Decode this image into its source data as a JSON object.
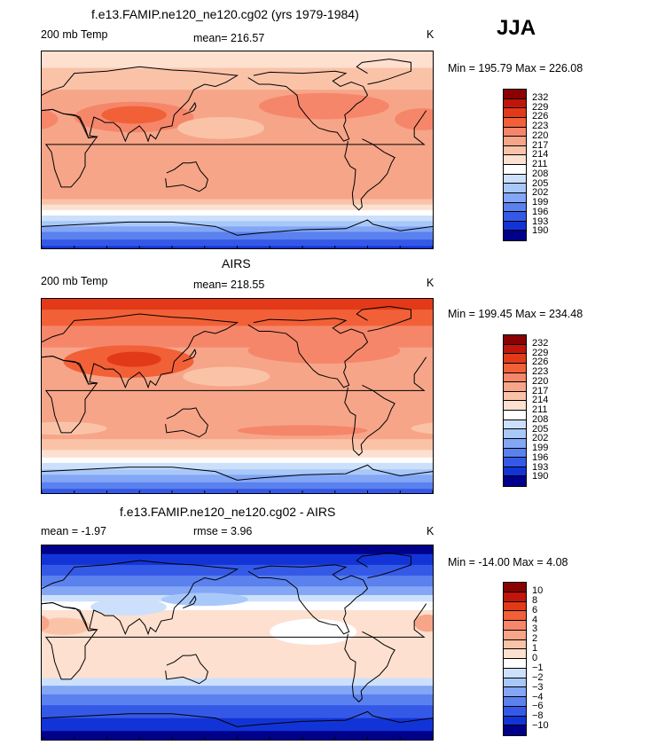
{
  "season": "JJA",
  "chart_data": [
    {
      "type": "heatmap",
      "title": "f.e13.FAMIP.ne120_ne120.cg02 (yrs 1979-1984)",
      "left_label": "200 mb Temp",
      "center_label": "mean=  216.57",
      "units": "K",
      "min_max": "Min = 195.79 Max = 226.08",
      "min": 195.79,
      "max": 226.08,
      "mean": 216.57,
      "levels": [
        "232",
        "229",
        "226",
        "223",
        "220",
        "217",
        "214",
        "211",
        "208",
        "205",
        "202",
        "199",
        "196",
        "193",
        "190"
      ],
      "colors": [
        "#8b0000",
        "#c1150c",
        "#e23a19",
        "#f26038",
        "#f5866a",
        "#f6a589",
        "#fac3a8",
        "#fde0cf",
        "#ffffff",
        "#cce0fb",
        "#a9c8fa",
        "#83a7f5",
        "#5b81ef",
        "#3559e7",
        "#1234d7",
        "#00008b"
      ],
      "bands": [
        {
          "lat": 90,
          "i": 7
        },
        {
          "lat": 75,
          "i": 6
        },
        {
          "lat": 55,
          "i": 5
        },
        {
          "lat": 10,
          "i": 5
        },
        {
          "lat": -30,
          "i": 5
        },
        {
          "lat": -45,
          "i": 6
        },
        {
          "lat": -50,
          "i": 7
        },
        {
          "lat": -55,
          "i": 8
        },
        {
          "lat": -60,
          "i": 9
        },
        {
          "lat": -65,
          "i": 10
        },
        {
          "lat": -70,
          "i": 11
        },
        {
          "lat": -75,
          "i": 12
        },
        {
          "lat": -82,
          "i": 13
        },
        {
          "lat": -88,
          "i": 14
        }
      ],
      "blobs": [
        {
          "lon": 85,
          "lat": 30,
          "rlon": 55,
          "rlat": 14,
          "i": 4
        },
        {
          "lon": 85,
          "lat": 32,
          "rlon": 30,
          "rlat": 8,
          "i": 3
        },
        {
          "lon": 165,
          "lat": 20,
          "rlon": 40,
          "rlat": 10,
          "i": 6
        },
        {
          "lon": 350,
          "lat": 28,
          "rlon": 25,
          "rlat": 10,
          "i": 4
        },
        {
          "lon": 260,
          "lat": 40,
          "rlon": 60,
          "rlat": 12,
          "i": 4
        }
      ]
    },
    {
      "type": "heatmap",
      "title": "AIRS",
      "left_label": "200 mb Temp",
      "center_label": "mean=  218.55",
      "units": "K",
      "min_max": "Min = 199.45 Max = 234.48",
      "min": 199.45,
      "max": 234.48,
      "mean": 218.55,
      "levels": [
        "232",
        "229",
        "226",
        "223",
        "220",
        "217",
        "214",
        "211",
        "208",
        "205",
        "202",
        "199",
        "196",
        "193",
        "190"
      ],
      "colors": [
        "#8b0000",
        "#c1150c",
        "#e23a19",
        "#f26038",
        "#f5866a",
        "#f6a589",
        "#fac3a8",
        "#fde0cf",
        "#ffffff",
        "#cce0fb",
        "#a9c8fa",
        "#83a7f5",
        "#5b81ef",
        "#3559e7",
        "#1234d7",
        "#00008b"
      ],
      "bands": [
        {
          "lat": 90,
          "i": 2
        },
        {
          "lat": 80,
          "i": 3
        },
        {
          "lat": 65,
          "i": 4
        },
        {
          "lat": 45,
          "i": 5
        },
        {
          "lat": 15,
          "i": 5
        },
        {
          "lat": -20,
          "i": 5
        },
        {
          "lat": -40,
          "i": 6
        },
        {
          "lat": -50,
          "i": 7
        },
        {
          "lat": -57,
          "i": 8
        },
        {
          "lat": -62,
          "i": 9
        },
        {
          "lat": -68,
          "i": 10
        },
        {
          "lat": -73,
          "i": 11
        },
        {
          "lat": -80,
          "i": 12
        },
        {
          "lat": -86,
          "i": 13
        }
      ],
      "blobs": [
        {
          "lon": 80,
          "lat": 32,
          "rlon": 60,
          "rlat": 15,
          "i": 3
        },
        {
          "lon": 85,
          "lat": 34,
          "rlon": 25,
          "rlat": 7,
          "i": 2
        },
        {
          "lon": 260,
          "lat": 42,
          "rlon": 70,
          "rlat": 12,
          "i": 4
        },
        {
          "lon": 170,
          "lat": 18,
          "rlon": 40,
          "rlat": 9,
          "i": 6
        },
        {
          "lon": 20,
          "lat": -30,
          "rlon": 40,
          "rlat": 6,
          "i": 6
        },
        {
          "lon": 240,
          "lat": -32,
          "rlon": 60,
          "rlat": 5,
          "i": 4
        }
      ]
    },
    {
      "type": "heatmap",
      "title": "f.e13.FAMIP.ne120_ne120.cg02 - AIRS",
      "left_label": "mean =   -1.97",
      "center_label": "rmse =    3.96",
      "units": "K",
      "min_max": "Min = -14.00 Max =   4.08",
      "min": -14.0,
      "max": 4.08,
      "mean": -1.97,
      "rmse": 3.96,
      "levels": [
        "10",
        "8",
        "6",
        "4",
        "3",
        "2",
        "1",
        "0",
        "−1",
        "−2",
        "−3",
        "−4",
        "−6",
        "−8",
        "−10"
      ],
      "colors": [
        "#8b0000",
        "#c1150c",
        "#e23a19",
        "#f26038",
        "#f5866a",
        "#f6a589",
        "#fac3a8",
        "#fde0cf",
        "#ffffff",
        "#cce0fb",
        "#a9c8fa",
        "#83a7f5",
        "#5b81ef",
        "#3559e7",
        "#1234d7",
        "#00008b"
      ],
      "bands": [
        {
          "lat": 90,
          "i": 15
        },
        {
          "lat": 82,
          "i": 14
        },
        {
          "lat": 72,
          "i": 13
        },
        {
          "lat": 62,
          "i": 12
        },
        {
          "lat": 52,
          "i": 11
        },
        {
          "lat": 44,
          "i": 9
        },
        {
          "lat": 38,
          "i": 8
        },
        {
          "lat": 30,
          "i": 7
        },
        {
          "lat": -25,
          "i": 7
        },
        {
          "lat": -33,
          "i": 9
        },
        {
          "lat": -40,
          "i": 11
        },
        {
          "lat": -48,
          "i": 12
        },
        {
          "lat": -58,
          "i": 13
        },
        {
          "lat": -70,
          "i": 14
        },
        {
          "lat": -82,
          "i": 15
        }
      ],
      "blobs": [
        {
          "lon": 80,
          "lat": 33,
          "rlon": 35,
          "rlat": 8,
          "i": 9
        },
        {
          "lon": 20,
          "lat": 15,
          "rlon": 25,
          "rlat": 8,
          "i": 6
        },
        {
          "lon": 355,
          "lat": 18,
          "rlon": 12,
          "rlat": 8,
          "i": 5
        },
        {
          "lon": 250,
          "lat": 10,
          "rlon": 40,
          "rlat": 12,
          "i": 8
        },
        {
          "lon": 150,
          "lat": 40,
          "rlon": 40,
          "rlat": 6,
          "i": 10
        }
      ]
    }
  ]
}
